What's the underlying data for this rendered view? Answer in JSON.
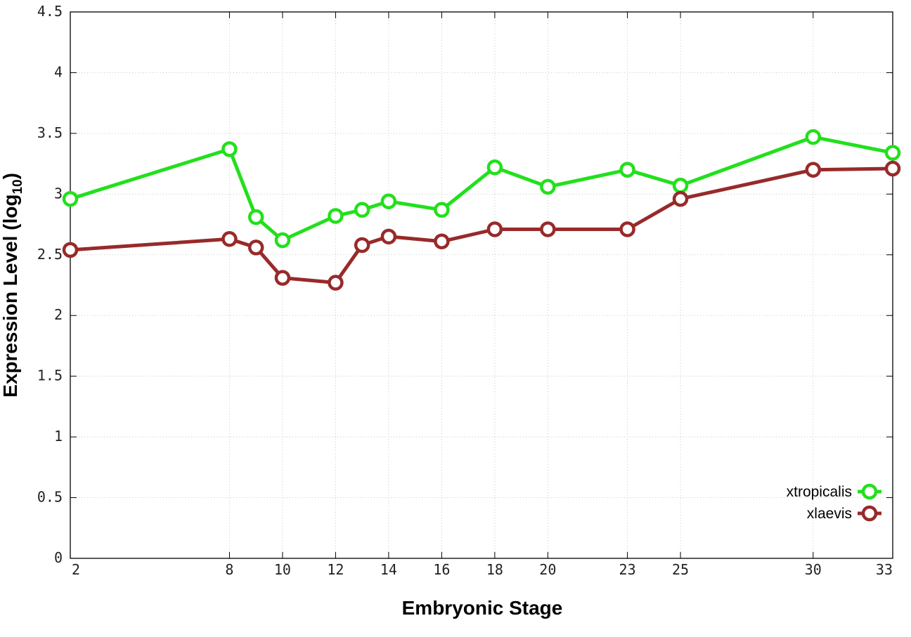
{
  "chart_data": {
    "type": "line",
    "xlabel": "Embryonic Stage",
    "ylabel": {
      "main": "Expression Level (log",
      "sub": "10",
      "close": ")"
    },
    "x_ticks": [
      2,
      8,
      10,
      12,
      14,
      16,
      18,
      20,
      23,
      25,
      30,
      33
    ],
    "y_ticks": [
      "0",
      "0.5",
      "1",
      "1.5",
      "2",
      "2.5",
      "3",
      "3.5",
      "4",
      "4.5"
    ],
    "xlim": [
      2,
      33
    ],
    "ylim": [
      0,
      4.5
    ],
    "grid": true,
    "legend_position": "bottom-right",
    "x": [
      2,
      8,
      9,
      10,
      12,
      13,
      14,
      16,
      18,
      20,
      23,
      25,
      30,
      33
    ],
    "series": [
      {
        "name": "xtropicalis",
        "color": "#22e01c",
        "values": [
          2.96,
          3.37,
          2.81,
          2.62,
          2.82,
          2.87,
          2.94,
          2.87,
          3.22,
          3.06,
          3.2,
          3.07,
          3.47,
          3.34
        ]
      },
      {
        "name": "xlaevis",
        "color": "#982a2a",
        "values": [
          2.54,
          2.63,
          2.56,
          2.31,
          2.27,
          2.58,
          2.65,
          2.61,
          2.71,
          2.71,
          2.71,
          2.96,
          3.2,
          3.21
        ]
      }
    ]
  }
}
